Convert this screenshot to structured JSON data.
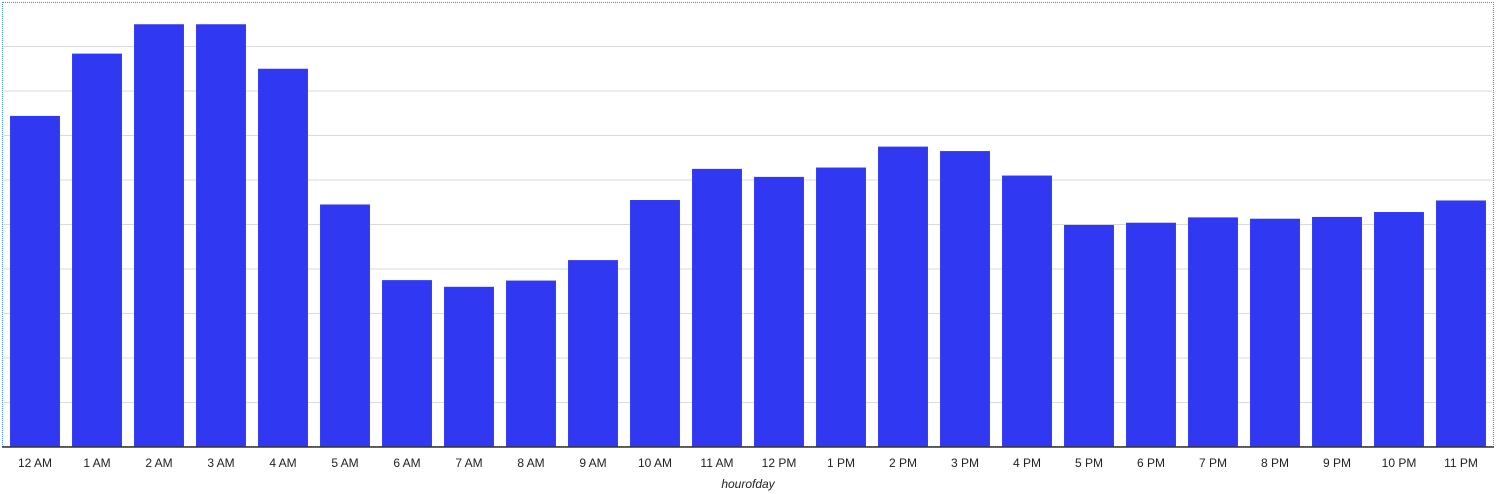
{
  "chart_data": {
    "type": "bar",
    "categories": [
      "12 AM",
      "1 AM",
      "2 AM",
      "3 AM",
      "4 AM",
      "5 AM",
      "6 AM",
      "7 AM",
      "8 AM",
      "9 AM",
      "10 AM",
      "11 AM",
      "12 PM",
      "1 PM",
      "2 PM",
      "3 PM",
      "4 PM",
      "5 PM",
      "6 PM",
      "7 PM",
      "8 PM",
      "9 PM",
      "10 PM",
      "11 PM"
    ],
    "values": [
      7.44,
      8.84,
      9.5,
      9.5,
      8.5,
      5.45,
      3.75,
      3.6,
      3.74,
      4.2,
      5.55,
      6.25,
      6.07,
      6.28,
      6.75,
      6.65,
      6.1,
      4.99,
      5.04,
      5.16,
      5.13,
      5.17,
      5.28,
      5.54
    ],
    "xlabel": "hourofday",
    "ylabel": "",
    "ylim": [
      0,
      10
    ],
    "gridlines": [
      1,
      2,
      3,
      4,
      5,
      6,
      7,
      8,
      9
    ],
    "grid": true,
    "legend": "none",
    "bar_color": "#3038F2",
    "grid_color": "#d9d9d9",
    "axis_color": "#333333"
  }
}
